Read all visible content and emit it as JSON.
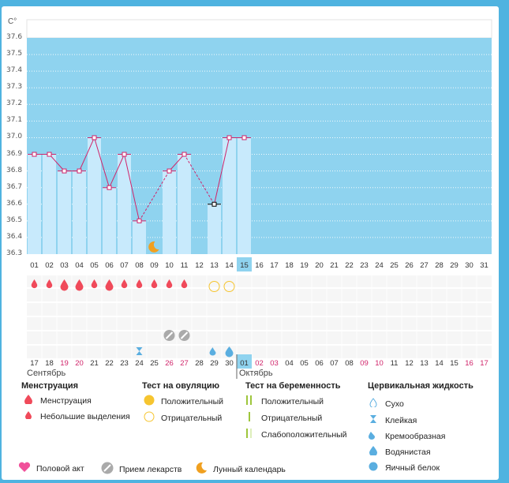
{
  "chart_data": {
    "type": "line",
    "unit_label": "C°",
    "y_ticks": [
      "37.6",
      "37.5",
      "37.4",
      "37.3",
      "37.2",
      "37.1",
      "37.0",
      "36.9",
      "36.8",
      "36.7",
      "36.6",
      "36.5",
      "36.4",
      "36.3"
    ],
    "ylim": [
      36.3,
      37.6
    ],
    "cycle_days": [
      "01",
      "02",
      "03",
      "04",
      "05",
      "06",
      "07",
      "08",
      "09",
      "10",
      "11",
      "12",
      "13",
      "14",
      "15",
      "16",
      "17",
      "18",
      "19",
      "20",
      "21",
      "22",
      "23",
      "24",
      "25",
      "26",
      "27",
      "28",
      "29",
      "30",
      "31"
    ],
    "current_day_index": 14,
    "temperatures": [
      36.9,
      36.9,
      36.8,
      36.8,
      37.0,
      36.7,
      36.9,
      36.5,
      null,
      36.8,
      36.9,
      null,
      36.6,
      37.0,
      37.0,
      null,
      null,
      null,
      null,
      null,
      null,
      null,
      null,
      null,
      null,
      null,
      null,
      null,
      null,
      null,
      null
    ],
    "dates": [
      "17",
      "18",
      "19",
      "20",
      "21",
      "22",
      "23",
      "24",
      "25",
      "26",
      "27",
      "28",
      "29",
      "30",
      "01",
      "02",
      "03",
      "04",
      "05",
      "06",
      "07",
      "08",
      "09",
      "10",
      "11",
      "12",
      "13",
      "14",
      "15",
      "16",
      "17"
    ],
    "weekend_indices": [
      2,
      3,
      9,
      10,
      15,
      16,
      22,
      23,
      29,
      30
    ],
    "months": [
      "Сентябрь",
      "Октябрь"
    ],
    "menstruation_big": [
      2,
      3,
      5
    ],
    "menstruation_small": [
      0,
      1,
      4,
      6,
      7,
      8,
      9,
      10
    ],
    "ovulation_negative": [
      12,
      13
    ],
    "medicine": [
      9,
      10
    ],
    "sticky": [
      7
    ],
    "creamy": [
      12
    ],
    "watery": [
      13
    ],
    "moon": [
      8
    ]
  },
  "legend": {
    "menstruation": {
      "title": "Менструация",
      "items": [
        "Менструация",
        "Небольшие выделения"
      ]
    },
    "ovulation": {
      "title": "Тест на овуляцию",
      "items": [
        "Положительный",
        "Отрицательный"
      ]
    },
    "pregnancy": {
      "title": "Тест на беременность",
      "items": [
        "Положительный",
        "Отрицательный",
        "Слабоположительный"
      ]
    },
    "cervical": {
      "title": "Цервикальная жидкость",
      "items": [
        "Сухо",
        "Клейкая",
        "Кремообразная",
        "Водянистая",
        "Яичный белок"
      ]
    },
    "bottom": [
      "Половой акт",
      "Прием лекарств",
      "Лунный календарь"
    ]
  },
  "colors": {
    "bar": "#c8eafc",
    "sky": "#8fd3ef",
    "line": "#d0246a",
    "menstr": "#f04a5a",
    "ovul": "#f6c530",
    "preg": "#9ec63c",
    "cerv": "#5aaee0",
    "heart": "#f0509a",
    "moon": "#f0a020",
    "weekend": "#d0246a",
    "medicine": "#aaaaaa",
    "today": "#8fd3ef"
  }
}
